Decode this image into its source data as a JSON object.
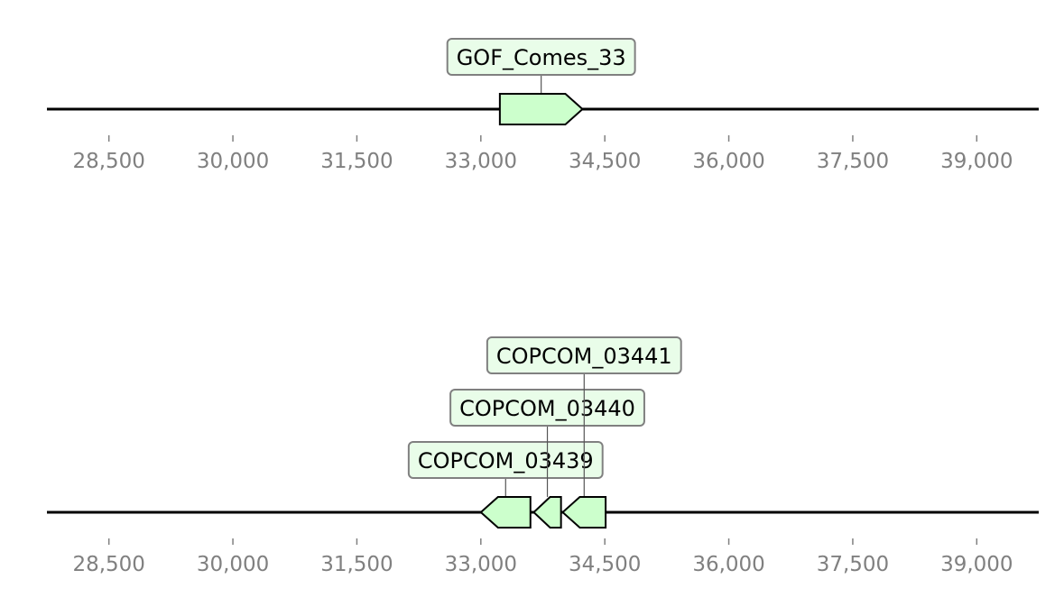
{
  "colors": {
    "axis_line": "#000000",
    "tick_mark": "#808080",
    "tick_label": "#808080",
    "feature_fill": "#ccffcc",
    "feature_stroke": "#000000",
    "label_fill": "#e9fde9",
    "label_stroke": "#808080",
    "connector": "#555555"
  },
  "tracks": [
    {
      "axis_range": [
        27750,
        39750
      ],
      "ticks": [
        {
          "value": 28500,
          "label": "28,500"
        },
        {
          "value": 30000,
          "label": "30,000"
        },
        {
          "value": 31500,
          "label": "31,500"
        },
        {
          "value": 33000,
          "label": "33,000"
        },
        {
          "value": 34500,
          "label": "34,500"
        },
        {
          "value": 36000,
          "label": "36,000"
        },
        {
          "value": 37500,
          "label": "37,500"
        },
        {
          "value": 39000,
          "label": "39,000"
        }
      ],
      "features": [
        {
          "label": "GOF_Comes_33",
          "start": 33230,
          "end": 34230,
          "strand": 1,
          "label_level": 0
        }
      ]
    },
    {
      "axis_range": [
        27750,
        39750
      ],
      "ticks": [
        {
          "value": 28500,
          "label": "28,500"
        },
        {
          "value": 30000,
          "label": "30,000"
        },
        {
          "value": 31500,
          "label": "31,500"
        },
        {
          "value": 33000,
          "label": "33,000"
        },
        {
          "value": 34500,
          "label": "34,500"
        },
        {
          "value": 36000,
          "label": "36,000"
        },
        {
          "value": 37500,
          "label": "37,500"
        },
        {
          "value": 39000,
          "label": "39,000"
        }
      ],
      "features": [
        {
          "label": "COPCOM_03439",
          "start": 33000,
          "end": 33600,
          "strand": -1,
          "label_level": 0
        },
        {
          "label": "COPCOM_03440",
          "start": 33640,
          "end": 33970,
          "strand": -1,
          "label_level": 1
        },
        {
          "label": "COPCOM_03441",
          "start": 33990,
          "end": 34510,
          "strand": -1,
          "label_level": 2
        }
      ]
    }
  ]
}
